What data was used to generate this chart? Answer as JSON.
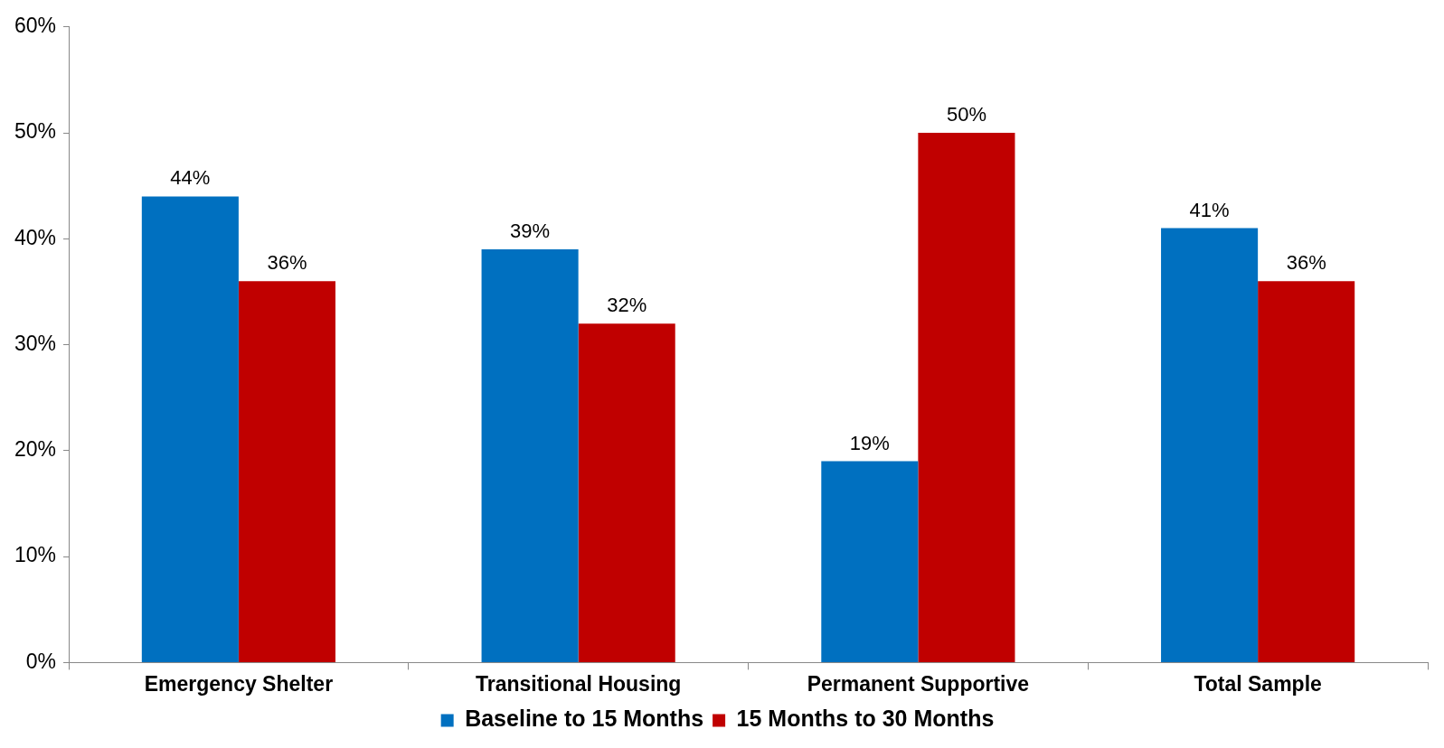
{
  "chart_data": {
    "type": "bar",
    "categories": [
      "Emergency Shelter",
      "Transitional Housing",
      "Permanent Supportive",
      "Total Sample"
    ],
    "series": [
      {
        "name": "Baseline to 15 Months",
        "color": "#0070c0",
        "values": [
          44,
          39,
          19,
          41
        ],
        "value_labels": [
          "44%",
          "39%",
          "19%",
          "41%"
        ]
      },
      {
        "name": "15 Months to 30 Months",
        "color": "#c00000",
        "values": [
          36,
          32,
          50,
          36
        ],
        "value_labels": [
          "36%",
          "32%",
          "50%",
          "36%"
        ]
      }
    ],
    "ylim": [
      0,
      60
    ],
    "yticks": [
      {
        "value": 0,
        "label": "0%"
      },
      {
        "value": 10,
        "label": "10%"
      },
      {
        "value": 20,
        "label": "20%"
      },
      {
        "value": 30,
        "label": "30%"
      },
      {
        "value": 40,
        "label": "40%"
      },
      {
        "value": 50,
        "label": "50%"
      },
      {
        "value": 60,
        "label": "60%"
      }
    ],
    "legend": "bottom"
  }
}
